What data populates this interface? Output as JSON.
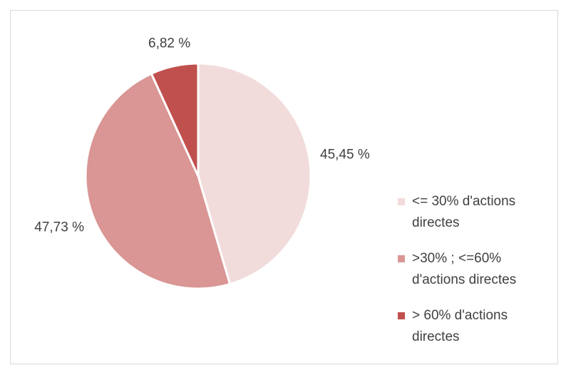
{
  "chart_data": {
    "type": "pie",
    "categories": [
      "<= 30% d'actions directes",
      ">30% ; <=60% d'actions directes",
      "> 60% d'actions directes"
    ],
    "values": [
      45.45,
      47.73,
      6.82
    ],
    "value_labels": [
      "45,45 %",
      "47,73 %",
      "6,82 %"
    ],
    "colors": [
      "#f2dcdb",
      "#d99694",
      "#c0504d"
    ],
    "legend": "right"
  }
}
